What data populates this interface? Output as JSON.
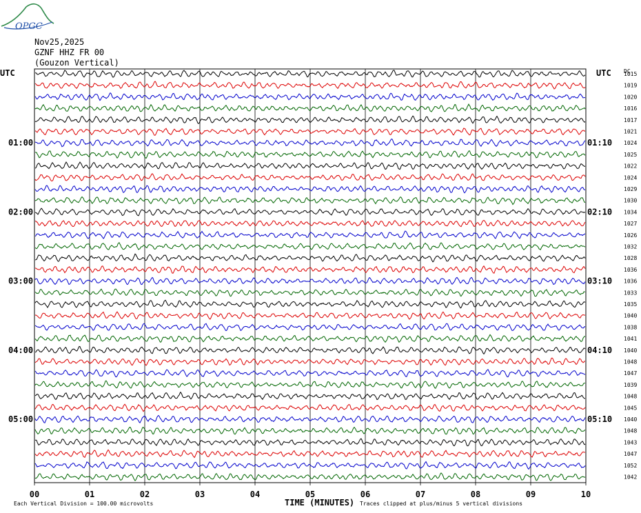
{
  "logo": {
    "text": "OPGC"
  },
  "header": {
    "date": "Nov25,2025",
    "station": "GZNF HHZ FR 00",
    "location": "(Gouzon Vertical)"
  },
  "chart_data": {
    "type": "line",
    "title": "",
    "left_axis_label": "UTC",
    "right_axis_label": "UTC",
    "right_column_label": "DC",
    "xlabel": "TIME (MINUTES)",
    "x_ticks": [
      "00",
      "01",
      "02",
      "03",
      "04",
      "05",
      "06",
      "07",
      "08",
      "09",
      "10"
    ],
    "xlim": [
      0,
      10
    ],
    "grid": true,
    "left_time_labels": [
      {
        "row": 6,
        "label": "01:00"
      },
      {
        "row": 12,
        "label": "02:00"
      },
      {
        "row": 18,
        "label": "03:00"
      },
      {
        "row": 24,
        "label": "04:00"
      },
      {
        "row": 30,
        "label": "05:00"
      }
    ],
    "right_time_labels": [
      {
        "row": 6,
        "label": "01:10"
      },
      {
        "row": 12,
        "label": "02:10"
      },
      {
        "row": 18,
        "label": "03:10"
      },
      {
        "row": 24,
        "label": "04:10"
      },
      {
        "row": 30,
        "label": "05:10"
      }
    ],
    "trace_colors": [
      "#000000",
      "#dd0000",
      "#0000cc",
      "#006600"
    ],
    "dc_offsets": [
      "1015",
      "1019",
      "1020",
      "1016",
      "1017",
      "1021",
      "1024",
      "1025",
      "1022",
      "1024",
      "1029",
      "1030",
      "1034",
      "1027",
      "1026",
      "1032",
      "1028",
      "1036",
      "1036",
      "1033",
      "1035",
      "1040",
      "1038",
      "1041",
      "1040",
      "1048",
      "1047",
      "1039",
      "1048",
      "1045",
      "1040",
      "1048",
      "1043",
      "1047",
      "1052",
      "1042"
    ],
    "footnote_left": "Each Vertical Division = 100.00 microvolts",
    "footnote_right": "Traces clipped at plus/minus 5 vertical divisions"
  }
}
